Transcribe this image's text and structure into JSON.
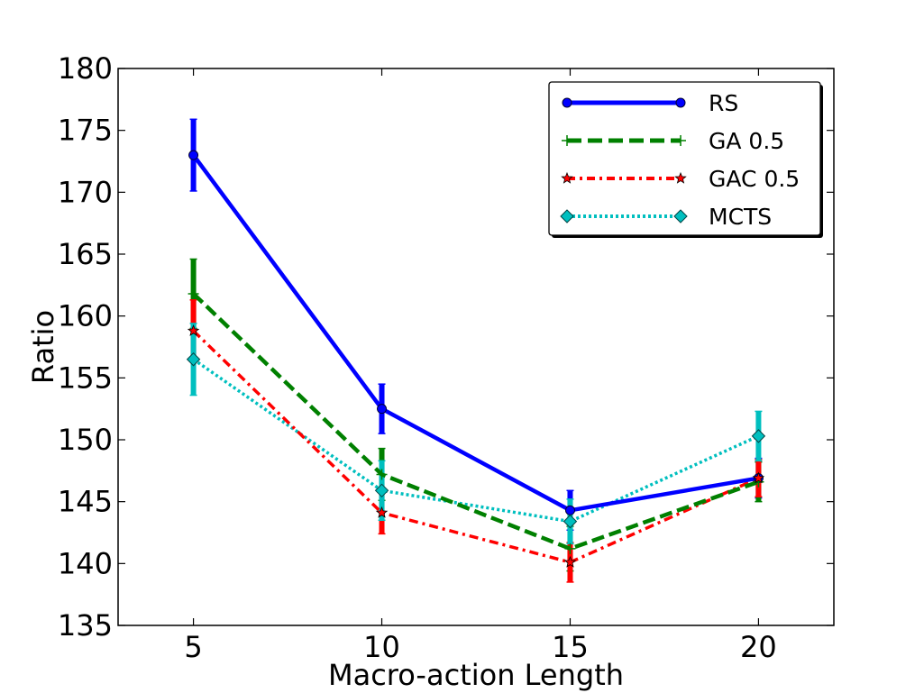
{
  "chart_data": {
    "type": "line",
    "xlabel": "Macro-action Length",
    "ylabel": "Ratio",
    "xlim": [
      3,
      22
    ],
    "ylim": [
      135,
      180
    ],
    "x_ticks": [
      "5",
      "10",
      "15",
      "20"
    ],
    "y_ticks": [
      "135",
      "140",
      "145",
      "150",
      "155",
      "160",
      "165",
      "170",
      "175",
      "180"
    ],
    "x": [
      5,
      10,
      15,
      20
    ],
    "grid": false,
    "legend_position": "top-right",
    "series": [
      {
        "name": "RS",
        "values": [
          173.0,
          152.5,
          144.3,
          146.9
        ],
        "errors": [
          2.9,
          2.0,
          1.6,
          1.6
        ],
        "color": "#0000ff",
        "marker": "circle",
        "style": "solid"
      },
      {
        "name": "GA 0.5",
        "values": [
          161.8,
          147.2,
          141.2,
          146.6
        ],
        "errors": [
          2.8,
          2.1,
          1.8,
          1.6
        ],
        "color": "#008000",
        "marker": "plus",
        "style": "dashed"
      },
      {
        "name": "GAC 0.5",
        "values": [
          158.8,
          144.1,
          140.1,
          146.9
        ],
        "errors": [
          2.5,
          1.7,
          1.6,
          1.5
        ],
        "color": "#ff0000",
        "marker": "star",
        "style": "dashdot"
      },
      {
        "name": "MCTS",
        "values": [
          156.5,
          145.9,
          143.4,
          150.3
        ],
        "errors": [
          2.9,
          2.4,
          1.8,
          2.0
        ],
        "color": "#00bfbf",
        "marker": "diamond",
        "style": "dotted"
      }
    ]
  }
}
